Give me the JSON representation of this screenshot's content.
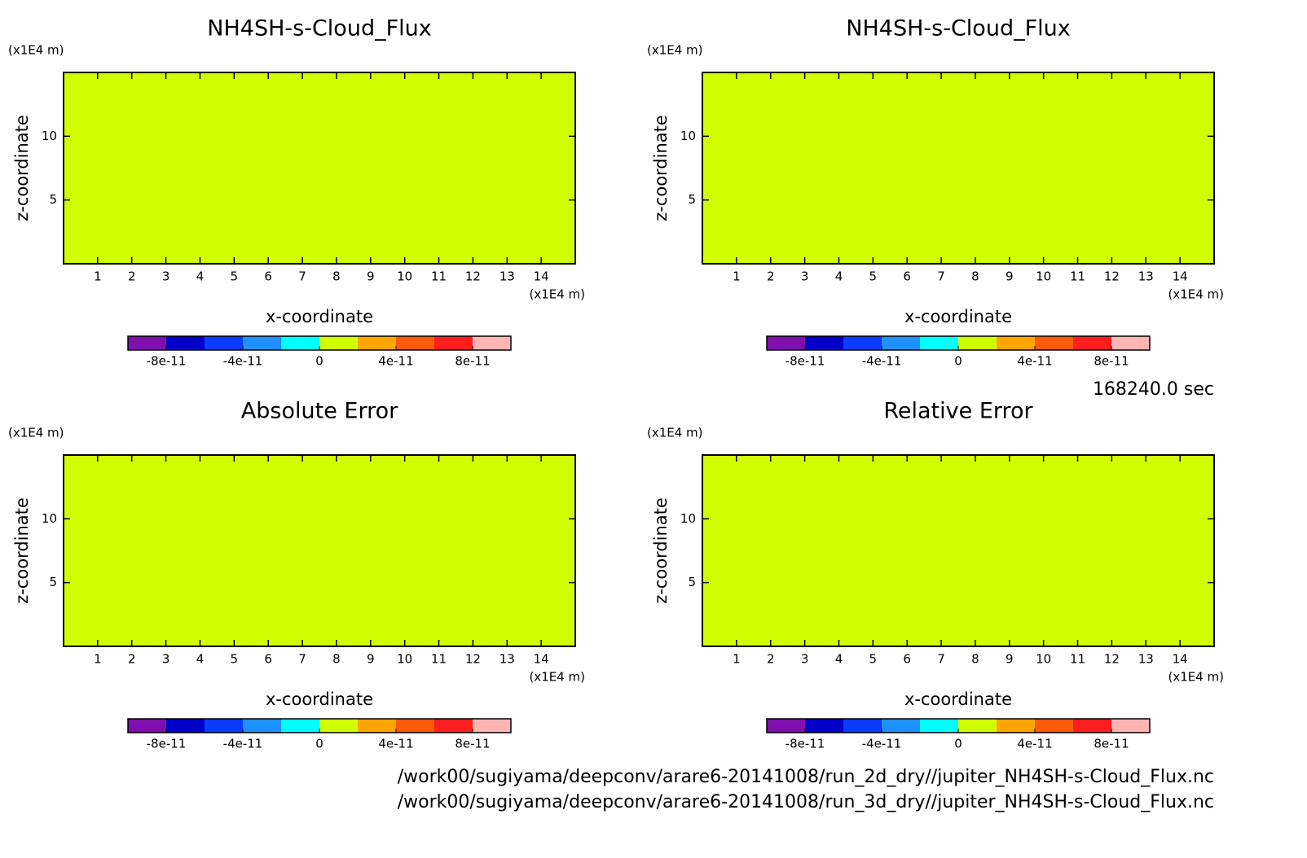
{
  "chart_data": [
    {
      "type": "contour",
      "title": "NH4SH-s-Cloud_Flux",
      "xlabel": "x-coordinate",
      "ylabel": "z-coordinate",
      "xunit": "(x1E4 m)",
      "yunit": "(x1E4 m)",
      "xlim": [
        0,
        15
      ],
      "ylim": [
        0,
        15
      ],
      "xticks": [
        1,
        2,
        3,
        4,
        5,
        6,
        7,
        8,
        9,
        10,
        11,
        12,
        13,
        14
      ],
      "yticks": [
        5,
        10
      ],
      "field_value": 0,
      "colorbar": {
        "levels": [
          -1e-10,
          -8e-11,
          -6e-11,
          -4e-11,
          -2e-11,
          0,
          2e-11,
          4e-11,
          6e-11,
          8e-11,
          1e-10
        ],
        "colors": [
          "#7f0faf",
          "#0000c8",
          "#0a3cff",
          "#1e90ff",
          "#00ffff",
          "#d2ff00",
          "#ffa500",
          "#ff5a0a",
          "#ff1e1e",
          "#ffb4b4"
        ],
        "ticks": [
          -8e-11,
          -4e-11,
          0,
          4e-11,
          8e-11
        ]
      }
    },
    {
      "type": "contour",
      "title": "NH4SH-s-Cloud_Flux",
      "xlabel": "x-coordinate",
      "ylabel": "z-coordinate",
      "xunit": "(x1E4 m)",
      "yunit": "(x1E4 m)",
      "xlim": [
        0,
        15
      ],
      "ylim": [
        0,
        15
      ],
      "xticks": [
        1,
        2,
        3,
        4,
        5,
        6,
        7,
        8,
        9,
        10,
        11,
        12,
        13,
        14
      ],
      "yticks": [
        5,
        10
      ],
      "field_value": 0,
      "colorbar": {
        "levels": [
          -1e-10,
          -8e-11,
          -6e-11,
          -4e-11,
          -2e-11,
          0,
          2e-11,
          4e-11,
          6e-11,
          8e-11,
          1e-10
        ],
        "colors": [
          "#7f0faf",
          "#0000c8",
          "#0a3cff",
          "#1e90ff",
          "#00ffff",
          "#d2ff00",
          "#ffa500",
          "#ff5a0a",
          "#ff1e1e",
          "#ffb4b4"
        ],
        "ticks": [
          -8e-11,
          -4e-11,
          0,
          4e-11,
          8e-11
        ]
      }
    },
    {
      "type": "contour",
      "title": "Absolute Error",
      "xlabel": "x-coordinate",
      "ylabel": "z-coordinate",
      "xunit": "(x1E4 m)",
      "yunit": "(x1E4 m)",
      "xlim": [
        0,
        15
      ],
      "ylim": [
        0,
        15
      ],
      "xticks": [
        1,
        2,
        3,
        4,
        5,
        6,
        7,
        8,
        9,
        10,
        11,
        12,
        13,
        14
      ],
      "yticks": [
        5,
        10
      ],
      "field_value": 0,
      "colorbar": {
        "levels": [
          -1e-10,
          -8e-11,
          -6e-11,
          -4e-11,
          -2e-11,
          0,
          2e-11,
          4e-11,
          6e-11,
          8e-11,
          1e-10
        ],
        "colors": [
          "#7f0faf",
          "#0000c8",
          "#0a3cff",
          "#1e90ff",
          "#00ffff",
          "#d2ff00",
          "#ffa500",
          "#ff5a0a",
          "#ff1e1e",
          "#ffb4b4"
        ],
        "ticks": [
          -8e-11,
          -4e-11,
          0,
          4e-11,
          8e-11
        ]
      }
    },
    {
      "type": "contour",
      "title": "Relative Error",
      "xlabel": "x-coordinate",
      "ylabel": "z-coordinate",
      "xunit": "(x1E4 m)",
      "yunit": "(x1E4 m)",
      "xlim": [
        0,
        15
      ],
      "ylim": [
        0,
        15
      ],
      "xticks": [
        1,
        2,
        3,
        4,
        5,
        6,
        7,
        8,
        9,
        10,
        11,
        12,
        13,
        14
      ],
      "yticks": [
        5,
        10
      ],
      "field_value": 0,
      "colorbar": {
        "levels": [
          -1e-10,
          -8e-11,
          -6e-11,
          -4e-11,
          -2e-11,
          0,
          2e-11,
          4e-11,
          6e-11,
          8e-11,
          1e-10
        ],
        "colors": [
          "#7f0faf",
          "#0000c8",
          "#0a3cff",
          "#1e90ff",
          "#00ffff",
          "#d2ff00",
          "#ffa500",
          "#ff5a0a",
          "#ff1e1e",
          "#ffb4b4"
        ],
        "ticks": [
          -8e-11,
          -4e-11,
          0,
          4e-11,
          8e-11
        ]
      }
    }
  ],
  "footer": {
    "time": "168240.0 sec",
    "files": [
      "/work00/sugiyama/deepconv/arare6-20141008/run_2d_dry//jupiter_NH4SH-s-Cloud_Flux.nc",
      "/work00/sugiyama/deepconv/arare6-20141008/run_3d_dry//jupiter_NH4SH-s-Cloud_Flux.nc"
    ]
  }
}
